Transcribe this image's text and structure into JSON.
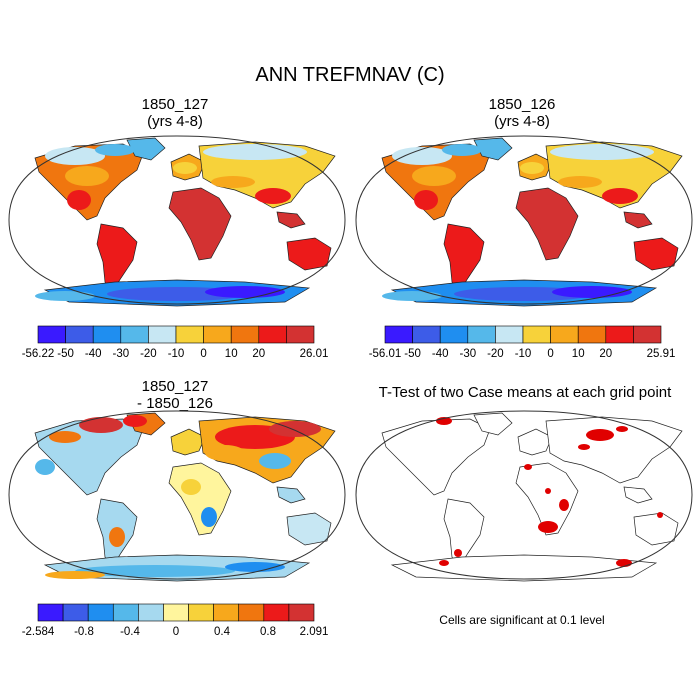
{
  "figure": {
    "title": "ANN TREFMNAV (C)"
  },
  "panels": [
    {
      "id": "p1",
      "title_line1": "1850_127",
      "title_line2": "(yrs 4-8)"
    },
    {
      "id": "p2",
      "title_line1": "1850_126",
      "title_line2": "(yrs 4-8)"
    },
    {
      "id": "p3",
      "title_line1": "1850_127",
      "title_line2": "- 1850_126"
    },
    {
      "id": "p4",
      "title_line1": "T-Test of two Case means at each grid point",
      "title_line2": ""
    }
  ],
  "colorbars": [
    {
      "id": "cb1",
      "labels": [
        "-56.22",
        "-50",
        "-40",
        "-30",
        "-20",
        "-10",
        "0",
        "10",
        "20",
        "26.01"
      ],
      "colors": [
        "#3a1aff",
        "#3d5ce8",
        "#1f8ef0",
        "#55b8ea",
        "#c7e7f3",
        "#f7d23a",
        "#f7a81c",
        "#f0760f",
        "#ec1a1a",
        "#d33232"
      ]
    },
    {
      "id": "cb2",
      "labels": [
        "-56.01",
        "-50",
        "-40",
        "-30",
        "-20",
        "-10",
        "0",
        "10",
        "20",
        "25.91"
      ],
      "colors": [
        "#3a1aff",
        "#3d5ce8",
        "#1f8ef0",
        "#55b8ea",
        "#c7e7f3",
        "#f7d23a",
        "#f7a81c",
        "#f0760f",
        "#ec1a1a",
        "#d33232"
      ]
    },
    {
      "id": "cb3",
      "labels": [
        "-2.584",
        "-0.8",
        "-0.4",
        "0",
        "0.4",
        "0.8",
        "2.091"
      ],
      "colors": [
        "#3a1aff",
        "#3d5ce8",
        "#1f8ef0",
        "#55b8ea",
        "#a6d9ef",
        "#fff59d",
        "#f7d23a",
        "#f7a81c",
        "#f0760f",
        "#ec1a1a",
        "#d33232"
      ]
    }
  ],
  "significance_note": "Cells are significant at 0.1 level"
}
